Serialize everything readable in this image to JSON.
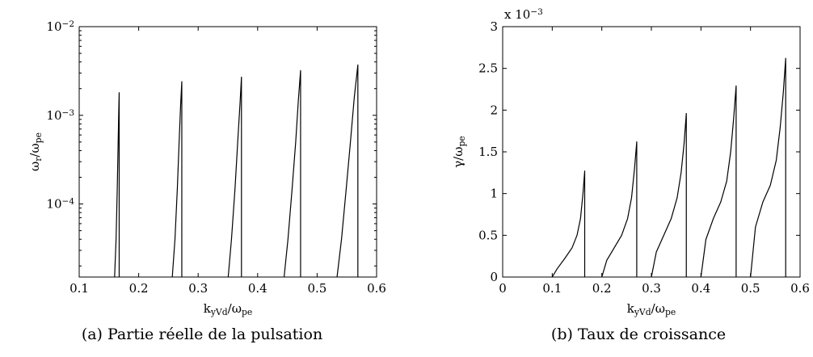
{
  "chart_data": [
    {
      "type": "line",
      "caption": "(a)  Partie réelle de la pulsation",
      "xlabel": "k_yV_d/ω_pe",
      "ylabel": "ω_r/ω_pe",
      "xlim": [
        0.1,
        0.6
      ],
      "ylim": [
        1.5e-05,
        0.01
      ],
      "yscale": "log",
      "xticks": [
        0.1,
        0.2,
        0.3,
        0.4,
        0.5,
        0.6
      ],
      "xtick_labels": [
        "0.1",
        "0.2",
        "0.3",
        "0.4",
        "0.5",
        "0.6"
      ],
      "yticks": [
        0.0001,
        0.001,
        0.01
      ],
      "ytick_labels": [
        {
          "base": "10",
          "exp": "−4"
        },
        {
          "base": "10",
          "exp": "−3"
        },
        {
          "base": "10",
          "exp": "−2"
        }
      ],
      "grid": false,
      "series": [
        {
          "x": [
            0.1595,
            0.162,
            0.164,
            0.1655,
            0.1665,
            0.1672,
            0.1672
          ],
          "y": [
            1.5e-05,
            4e-05,
            0.00015,
            0.0005,
            0.0011,
            0.0018,
            1.5e-05
          ]
        },
        {
          "x": [
            0.2565,
            0.261,
            0.265,
            0.268,
            0.2705,
            0.2725,
            0.2725
          ],
          "y": [
            1.5e-05,
            4e-05,
            0.00015,
            0.0005,
            0.0013,
            0.0024,
            1.5e-05
          ]
        },
        {
          "x": [
            0.3505,
            0.356,
            0.362,
            0.3665,
            0.3705,
            0.3728,
            0.3728
          ],
          "y": [
            1.5e-05,
            4e-05,
            0.00015,
            0.0005,
            0.0014,
            0.0027,
            1.5e-05
          ]
        },
        {
          "x": [
            0.4445,
            0.451,
            0.458,
            0.464,
            0.4685,
            0.4722,
            0.4722
          ],
          "y": [
            1.5e-05,
            4e-05,
            0.00015,
            0.0005,
            0.0015,
            0.0032,
            1.5e-05
          ]
        },
        {
          "x": [
            0.5335,
            0.541,
            0.549,
            0.556,
            0.5625,
            0.5685,
            0.5685
          ],
          "y": [
            1.5e-05,
            4e-05,
            0.00015,
            0.0005,
            0.0016,
            0.0037,
            1.5e-05
          ]
        }
      ]
    },
    {
      "type": "line",
      "caption": "(b)  Taux de croissance",
      "xlabel": "k_yV_d/ω_pe",
      "ylabel": "γ/ω_pe",
      "scale_note": "x 10",
      "scale_exp": "−3",
      "xlim": [
        0,
        0.6
      ],
      "ylim": [
        0,
        3
      ],
      "yscale": "linear",
      "xticks": [
        0,
        0.1,
        0.2,
        0.3,
        0.4,
        0.5,
        0.6
      ],
      "xtick_labels": [
        "0",
        "0.1",
        "0.2",
        "0.3",
        "0.4",
        "0.5",
        "0.6"
      ],
      "yticks": [
        0,
        0.5,
        1,
        1.5,
        2,
        2.5,
        3
      ],
      "ytick_labels": [
        "0",
        "0.5",
        "1",
        "1.5",
        "2",
        "2.5",
        "3"
      ],
      "grid": false,
      "series": [
        {
          "x": [
            0.1,
            0.11,
            0.125,
            0.14,
            0.15,
            0.157,
            0.162,
            0.1655,
            0.1655
          ],
          "y": [
            0,
            0.1,
            0.22,
            0.35,
            0.5,
            0.7,
            1.0,
            1.27,
            0
          ]
        },
        {
          "x": [
            0.2,
            0.21,
            0.225,
            0.24,
            0.252,
            0.26,
            0.266,
            0.2705,
            0.2705
          ],
          "y": [
            0,
            0.2,
            0.35,
            0.5,
            0.7,
            0.95,
            1.3,
            1.62,
            0
          ]
        },
        {
          "x": [
            0.3,
            0.31,
            0.325,
            0.34,
            0.352,
            0.36,
            0.366,
            0.3705,
            0.3705
          ],
          "y": [
            0,
            0.3,
            0.5,
            0.7,
            0.95,
            1.25,
            1.6,
            1.96,
            0
          ]
        },
        {
          "x": [
            0.4,
            0.41,
            0.425,
            0.44,
            0.452,
            0.46,
            0.466,
            0.471,
            0.471
          ],
          "y": [
            0,
            0.45,
            0.7,
            0.9,
            1.15,
            1.5,
            1.9,
            2.29,
            0
          ]
        },
        {
          "x": [
            0.5,
            0.51,
            0.525,
            0.54,
            0.552,
            0.56,
            0.566,
            0.571,
            0.571
          ],
          "y": [
            0,
            0.6,
            0.9,
            1.1,
            1.4,
            1.8,
            2.2,
            2.62,
            0
          ]
        }
      ]
    }
  ]
}
